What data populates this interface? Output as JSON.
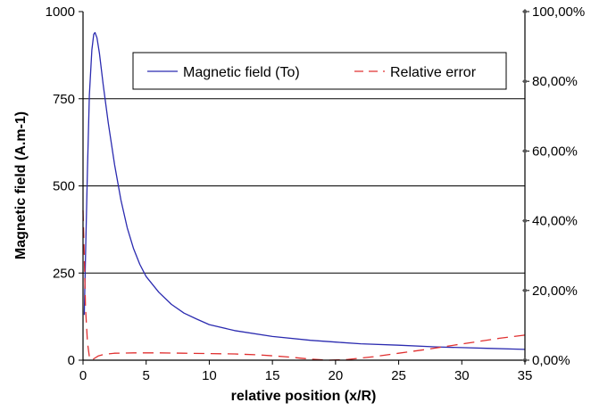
{
  "chart_data": {
    "type": "line",
    "title": "",
    "xlabel": "relative position (x/R)",
    "ylabel": "Magnetic field (A.m-1)",
    "xlim": [
      0,
      35
    ],
    "ylim": [
      0,
      1000
    ],
    "y2lim": [
      0,
      1
    ],
    "x_ticks": [
      0,
      5,
      10,
      15,
      20,
      25,
      30,
      35
    ],
    "x_tick_labels": [
      "0",
      "5",
      "10",
      "15",
      "20",
      "25",
      "30",
      "35"
    ],
    "y_ticks": [
      0,
      250,
      500,
      750,
      1000
    ],
    "y_tick_labels": [
      "0",
      "250",
      "500",
      "750",
      "1000"
    ],
    "y2_ticks": [
      0,
      0.2,
      0.4,
      0.6,
      0.8,
      1.0
    ],
    "y2_tick_labels": [
      "0,00%",
      "20,00%",
      "40,00%",
      "60,00%",
      "80,00%",
      "100,00%"
    ],
    "gridlines": [
      250,
      500,
      750
    ],
    "grid": "horizontal major lines",
    "legend_position": "top-right",
    "series": [
      {
        "name": "Magnetic field (To)",
        "axis": "left",
        "color": "#2b2bb0",
        "style": "solid",
        "points": [
          [
            0.1,
            130
          ],
          [
            0.2,
            300
          ],
          [
            0.35,
            550
          ],
          [
            0.5,
            760
          ],
          [
            0.7,
            890
          ],
          [
            0.85,
            935
          ],
          [
            0.95,
            940
          ],
          [
            1.1,
            925
          ],
          [
            1.3,
            880
          ],
          [
            1.6,
            790
          ],
          [
            2,
            680
          ],
          [
            2.5,
            560
          ],
          [
            3,
            460
          ],
          [
            3.5,
            380
          ],
          [
            4,
            320
          ],
          [
            4.5,
            275
          ],
          [
            5,
            240
          ],
          [
            6,
            195
          ],
          [
            7,
            160
          ],
          [
            8,
            135
          ],
          [
            9,
            118
          ],
          [
            10,
            102
          ],
          [
            12,
            85
          ],
          [
            15,
            68
          ],
          [
            18,
            57
          ],
          [
            20,
            52
          ],
          [
            22,
            47
          ],
          [
            25,
            43
          ],
          [
            28,
            38
          ],
          [
            30,
            36
          ],
          [
            32,
            34
          ],
          [
            35,
            31
          ]
        ]
      },
      {
        "name": "Relative error",
        "axis": "right",
        "color": "#e03030",
        "style": "dashed",
        "points": [
          [
            0,
            0.43
          ],
          [
            0.1,
            0.3
          ],
          [
            0.2,
            0.15
          ],
          [
            0.35,
            0.05
          ],
          [
            0.5,
            0.01
          ],
          [
            0.7,
            0
          ],
          [
            0.9,
            0.005
          ],
          [
            1.2,
            0.012
          ],
          [
            1.7,
            0.017
          ],
          [
            2.5,
            0.02
          ],
          [
            4,
            0.021
          ],
          [
            6,
            0.021
          ],
          [
            8,
            0.02
          ],
          [
            10,
            0.019
          ],
          [
            12,
            0.018
          ],
          [
            14,
            0.015
          ],
          [
            16,
            0.01
          ],
          [
            18,
            0.003
          ],
          [
            19.5,
            0
          ],
          [
            21,
            0.002
          ],
          [
            23,
            0.01
          ],
          [
            25,
            0.02
          ],
          [
            27,
            0.03
          ],
          [
            29,
            0.041
          ],
          [
            31,
            0.052
          ],
          [
            33,
            0.063
          ],
          [
            35,
            0.072
          ]
        ]
      }
    ]
  }
}
